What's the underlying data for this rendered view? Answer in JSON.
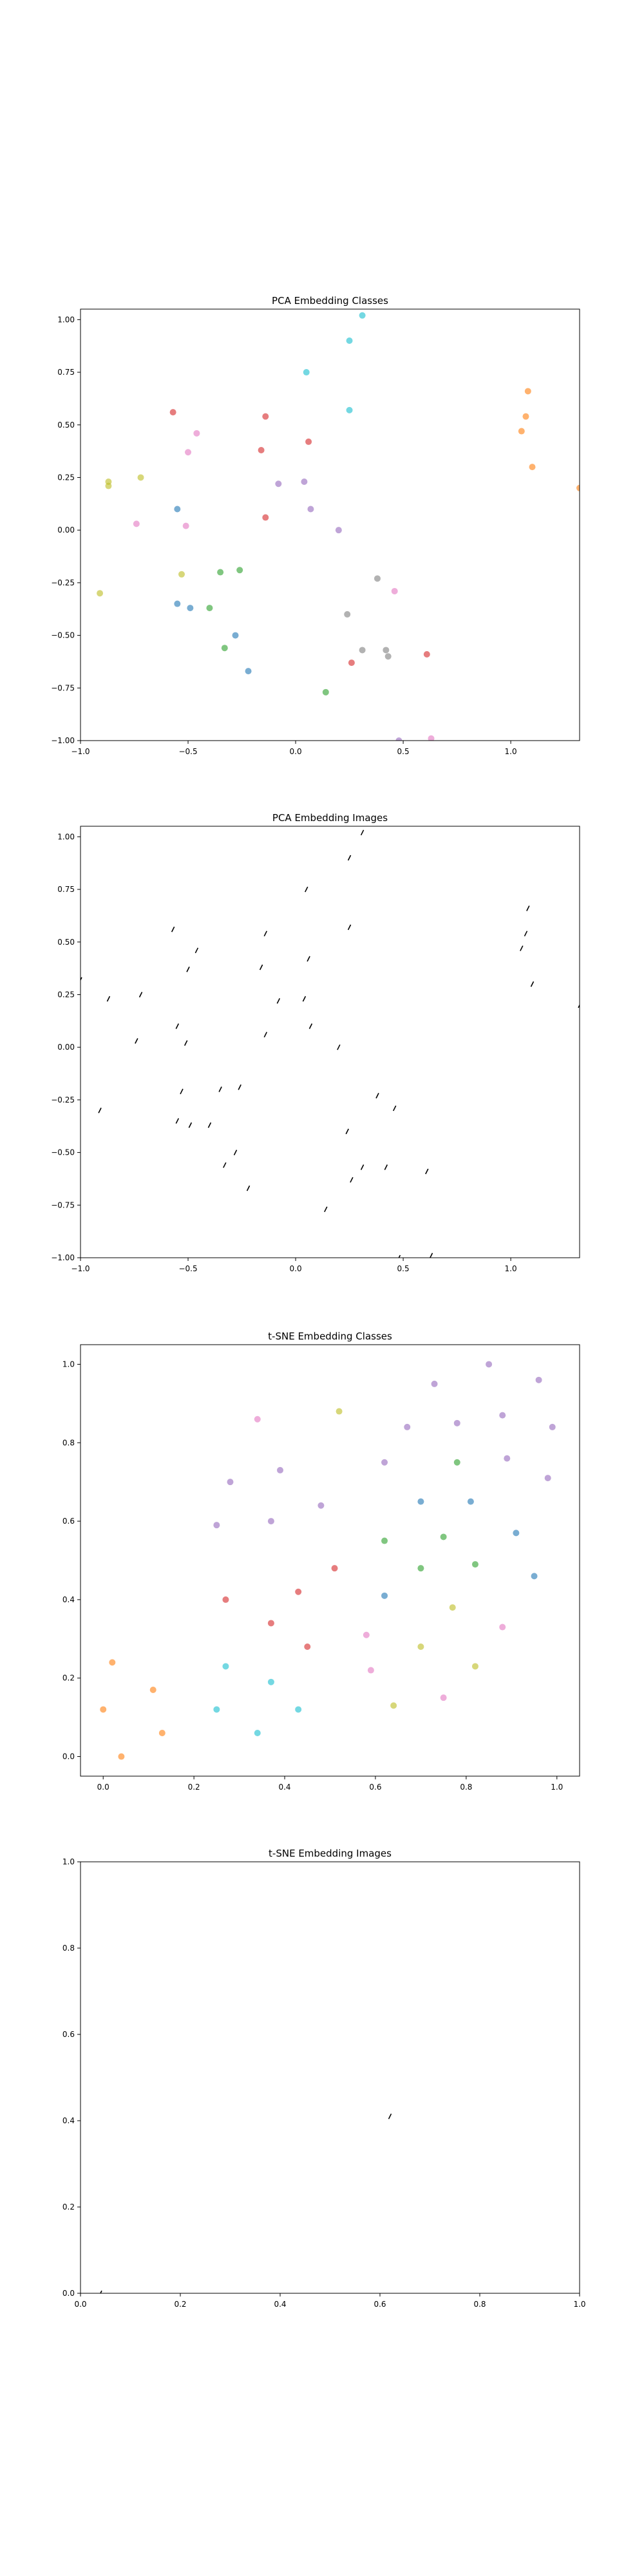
{
  "chart_data": [
    {
      "type": "scatter",
      "title": "PCA Embedding Classes",
      "xlim": [
        -1.0,
        1.32
      ],
      "ylim": [
        -1.0,
        1.05
      ],
      "xticks": [
        -1.0,
        -0.5,
        0.0,
        0.5,
        1.0
      ],
      "yticks": [
        -1.0,
        -0.75,
        -0.5,
        -0.25,
        0.0,
        0.25,
        0.5,
        0.75,
        1.0
      ],
      "xtick_labels": [
        "−1.0",
        "−0.5",
        "0.0",
        "0.5",
        "1.0"
      ],
      "ytick_labels": [
        "−1.00",
        "−0.75",
        "−0.50",
        "−0.25",
        "0.00",
        "0.25",
        "0.50",
        "0.75",
        "1.00"
      ],
      "points": [
        {
          "x": 0.31,
          "y": 1.02,
          "color": "#17becf"
        },
        {
          "x": 0.25,
          "y": 0.9,
          "color": "#17becf"
        },
        {
          "x": 0.05,
          "y": 0.75,
          "color": "#17becf"
        },
        {
          "x": 0.25,
          "y": 0.57,
          "color": "#17becf"
        },
        {
          "x": 1.08,
          "y": 0.66,
          "color": "#ff7f0e"
        },
        {
          "x": 1.07,
          "y": 0.54,
          "color": "#ff7f0e"
        },
        {
          "x": 1.05,
          "y": 0.47,
          "color": "#ff7f0e"
        },
        {
          "x": 1.1,
          "y": 0.3,
          "color": "#ff7f0e"
        },
        {
          "x": 1.32,
          "y": 0.2,
          "color": "#ff7f0e"
        },
        {
          "x": -0.57,
          "y": 0.56,
          "color": "#d62728"
        },
        {
          "x": -0.14,
          "y": 0.54,
          "color": "#d62728"
        },
        {
          "x": 0.06,
          "y": 0.42,
          "color": "#d62728"
        },
        {
          "x": -0.16,
          "y": 0.38,
          "color": "#d62728"
        },
        {
          "x": -0.14,
          "y": 0.06,
          "color": "#d62728"
        },
        {
          "x": -0.46,
          "y": 0.46,
          "color": "#e377c2"
        },
        {
          "x": -0.5,
          "y": 0.37,
          "color": "#e377c2"
        },
        {
          "x": -0.74,
          "y": 0.03,
          "color": "#e377c2"
        },
        {
          "x": -0.51,
          "y": 0.02,
          "color": "#e377c2"
        },
        {
          "x": -0.87,
          "y": 0.23,
          "color": "#bcbd22"
        },
        {
          "x": -0.87,
          "y": 0.21,
          "color": "#bcbd22"
        },
        {
          "x": -0.72,
          "y": 0.25,
          "color": "#bcbd22"
        },
        {
          "x": -0.91,
          "y": -0.3,
          "color": "#bcbd22"
        },
        {
          "x": -0.53,
          "y": -0.21,
          "color": "#bcbd22"
        },
        {
          "x": -0.08,
          "y": 0.22,
          "color": "#9467bd"
        },
        {
          "x": 0.04,
          "y": 0.23,
          "color": "#9467bd"
        },
        {
          "x": 0.07,
          "y": 0.1,
          "color": "#9467bd"
        },
        {
          "x": 0.2,
          "y": 0.0,
          "color": "#9467bd"
        },
        {
          "x": -0.55,
          "y": 0.1,
          "color": "#1f77b4"
        },
        {
          "x": -0.55,
          "y": -0.35,
          "color": "#1f77b4"
        },
        {
          "x": -0.49,
          "y": -0.37,
          "color": "#1f77b4"
        },
        {
          "x": -0.28,
          "y": -0.5,
          "color": "#1f77b4"
        },
        {
          "x": -0.22,
          "y": -0.67,
          "color": "#1f77b4"
        },
        {
          "x": -0.35,
          "y": -0.2,
          "color": "#2ca02c"
        },
        {
          "x": -0.26,
          "y": -0.19,
          "color": "#2ca02c"
        },
        {
          "x": -0.4,
          "y": -0.37,
          "color": "#2ca02c"
        },
        {
          "x": -0.33,
          "y": -0.56,
          "color": "#2ca02c"
        },
        {
          "x": 0.14,
          "y": -0.77,
          "color": "#2ca02c"
        },
        {
          "x": 0.38,
          "y": -0.23,
          "color": "#7f7f7f"
        },
        {
          "x": 0.42,
          "y": -0.57,
          "color": "#7f7f7f"
        },
        {
          "x": 0.43,
          "y": -0.6,
          "color": "#7f7f7f"
        },
        {
          "x": 0.31,
          "y": -0.57,
          "color": "#7f7f7f"
        },
        {
          "x": 0.24,
          "y": -0.4,
          "color": "#7f7f7f"
        },
        {
          "x": 0.46,
          "y": -0.29,
          "color": "#e377c2"
        },
        {
          "x": 0.26,
          "y": -0.63,
          "color": "#d62728"
        },
        {
          "x": 0.61,
          "y": -0.59,
          "color": "#d62728"
        },
        {
          "x": 0.48,
          "y": -1.0,
          "color": "#9467bd"
        },
        {
          "x": 0.63,
          "y": -0.99,
          "color": "#e377c2"
        }
      ]
    },
    {
      "type": "scatter",
      "title": "PCA Embedding Images",
      "xlim": [
        -1.0,
        1.32
      ],
      "ylim": [
        -1.0,
        1.05
      ],
      "xticks": [
        -1.0,
        -0.5,
        0.0,
        0.5,
        1.0
      ],
      "yticks": [
        -1.0,
        -0.75,
        -0.5,
        -0.25,
        0.0,
        0.25,
        0.5,
        0.75,
        1.0
      ],
      "xtick_labels": [
        "−1.0",
        "−0.5",
        "0.0",
        "0.5",
        "1.0"
      ],
      "ytick_labels": [
        "−1.00",
        "−0.75",
        "−0.50",
        "−0.25",
        "0.00",
        "0.25",
        "0.50",
        "0.75",
        "1.00"
      ],
      "marker": "tiny image glyphs at the PCA positions",
      "points": [
        {
          "x": 0.31,
          "y": 1.02
        },
        {
          "x": 0.25,
          "y": 0.9
        },
        {
          "x": 0.05,
          "y": 0.75
        },
        {
          "x": 0.25,
          "y": 0.57
        },
        {
          "x": 1.08,
          "y": 0.66
        },
        {
          "x": 1.07,
          "y": 0.54
        },
        {
          "x": 1.05,
          "y": 0.47
        },
        {
          "x": 1.1,
          "y": 0.3
        },
        {
          "x": 1.32,
          "y": 0.2
        },
        {
          "x": -0.57,
          "y": 0.56
        },
        {
          "x": -0.14,
          "y": 0.54
        },
        {
          "x": 0.06,
          "y": 0.42
        },
        {
          "x": -0.16,
          "y": 0.38
        },
        {
          "x": -0.14,
          "y": 0.06
        },
        {
          "x": -0.46,
          "y": 0.46
        },
        {
          "x": -0.5,
          "y": 0.37
        },
        {
          "x": -0.74,
          "y": 0.03
        },
        {
          "x": -0.51,
          "y": 0.02
        },
        {
          "x": -0.87,
          "y": 0.23
        },
        {
          "x": -0.72,
          "y": 0.25
        },
        {
          "x": -1.0,
          "y": 0.32
        },
        {
          "x": -0.91,
          "y": -0.3
        },
        {
          "x": -0.53,
          "y": -0.21
        },
        {
          "x": -0.08,
          "y": 0.22
        },
        {
          "x": 0.04,
          "y": 0.23
        },
        {
          "x": 0.07,
          "y": 0.1
        },
        {
          "x": 0.2,
          "y": 0.0
        },
        {
          "x": -0.55,
          "y": 0.1
        },
        {
          "x": -0.55,
          "y": -0.35
        },
        {
          "x": -0.49,
          "y": -0.37
        },
        {
          "x": -0.28,
          "y": -0.5
        },
        {
          "x": -0.22,
          "y": -0.67
        },
        {
          "x": -0.35,
          "y": -0.2
        },
        {
          "x": -0.26,
          "y": -0.19
        },
        {
          "x": -0.4,
          "y": -0.37
        },
        {
          "x": -0.33,
          "y": -0.56
        },
        {
          "x": 0.14,
          "y": -0.77
        },
        {
          "x": 0.38,
          "y": -0.23
        },
        {
          "x": 0.42,
          "y": -0.57
        },
        {
          "x": 0.31,
          "y": -0.57
        },
        {
          "x": 0.24,
          "y": -0.4
        },
        {
          "x": 0.46,
          "y": -0.29
        },
        {
          "x": 0.26,
          "y": -0.63
        },
        {
          "x": 0.61,
          "y": -0.59
        },
        {
          "x": 0.48,
          "y": -1.0
        },
        {
          "x": 0.63,
          "y": -0.99
        },
        {
          "x": 1.33,
          "y": 0.19
        }
      ]
    },
    {
      "type": "scatter",
      "title": "t-SNE Embedding Classes",
      "xlim": [
        -0.05,
        1.05
      ],
      "ylim": [
        -0.05,
        1.05
      ],
      "xticks": [
        0.0,
        0.2,
        0.4,
        0.6,
        0.8,
        1.0
      ],
      "yticks": [
        0.0,
        0.2,
        0.4,
        0.6,
        0.8,
        1.0
      ],
      "xtick_labels": [
        "0.0",
        "0.2",
        "0.4",
        "0.6",
        "0.8",
        "1.0"
      ],
      "ytick_labels": [
        "0.0",
        "0.2",
        "0.4",
        "0.6",
        "0.8",
        "1.0"
      ],
      "points": [
        {
          "x": 0.85,
          "y": 1.0,
          "color": "#9467bd"
        },
        {
          "x": 0.96,
          "y": 0.96,
          "color": "#9467bd"
        },
        {
          "x": 0.73,
          "y": 0.95,
          "color": "#9467bd"
        },
        {
          "x": 0.99,
          "y": 0.84,
          "color": "#9467bd"
        },
        {
          "x": 0.67,
          "y": 0.84,
          "color": "#9467bd"
        },
        {
          "x": 0.78,
          "y": 0.85,
          "color": "#9467bd"
        },
        {
          "x": 0.88,
          "y": 0.87,
          "color": "#9467bd"
        },
        {
          "x": 0.62,
          "y": 0.75,
          "color": "#9467bd"
        },
        {
          "x": 0.89,
          "y": 0.76,
          "color": "#9467bd"
        },
        {
          "x": 0.98,
          "y": 0.71,
          "color": "#9467bd"
        },
        {
          "x": 0.39,
          "y": 0.73,
          "color": "#9467bd"
        },
        {
          "x": 0.28,
          "y": 0.7,
          "color": "#9467bd"
        },
        {
          "x": 0.48,
          "y": 0.64,
          "color": "#9467bd"
        },
        {
          "x": 0.37,
          "y": 0.6,
          "color": "#9467bd"
        },
        {
          "x": 0.25,
          "y": 0.59,
          "color": "#9467bd"
        },
        {
          "x": 0.34,
          "y": 0.86,
          "color": "#e377c2"
        },
        {
          "x": 0.52,
          "y": 0.88,
          "color": "#bcbd22"
        },
        {
          "x": 0.78,
          "y": 0.75,
          "color": "#2ca02c"
        },
        {
          "x": 0.7,
          "y": 0.65,
          "color": "#1f77b4"
        },
        {
          "x": 0.81,
          "y": 0.65,
          "color": "#1f77b4"
        },
        {
          "x": 0.91,
          "y": 0.57,
          "color": "#1f77b4"
        },
        {
          "x": 0.95,
          "y": 0.46,
          "color": "#1f77b4"
        },
        {
          "x": 0.62,
          "y": 0.41,
          "color": "#1f77b4"
        },
        {
          "x": 0.62,
          "y": 0.55,
          "color": "#2ca02c"
        },
        {
          "x": 0.75,
          "y": 0.56,
          "color": "#2ca02c"
        },
        {
          "x": 0.7,
          "y": 0.48,
          "color": "#2ca02c"
        },
        {
          "x": 0.82,
          "y": 0.49,
          "color": "#2ca02c"
        },
        {
          "x": 0.51,
          "y": 0.48,
          "color": "#d62728"
        },
        {
          "x": 0.43,
          "y": 0.42,
          "color": "#d62728"
        },
        {
          "x": 0.27,
          "y": 0.4,
          "color": "#d62728"
        },
        {
          "x": 0.37,
          "y": 0.34,
          "color": "#d62728"
        },
        {
          "x": 0.45,
          "y": 0.28,
          "color": "#d62728"
        },
        {
          "x": 0.77,
          "y": 0.38,
          "color": "#bcbd22"
        },
        {
          "x": 0.7,
          "y": 0.28,
          "color": "#bcbd22"
        },
        {
          "x": 0.82,
          "y": 0.23,
          "color": "#bcbd22"
        },
        {
          "x": 0.64,
          "y": 0.13,
          "color": "#bcbd22"
        },
        {
          "x": 0.88,
          "y": 0.33,
          "color": "#e377c2"
        },
        {
          "x": 0.58,
          "y": 0.31,
          "color": "#e377c2"
        },
        {
          "x": 0.59,
          "y": 0.22,
          "color": "#e377c2"
        },
        {
          "x": 0.75,
          "y": 0.15,
          "color": "#e377c2"
        },
        {
          "x": 0.27,
          "y": 0.23,
          "color": "#17becf"
        },
        {
          "x": 0.37,
          "y": 0.19,
          "color": "#17becf"
        },
        {
          "x": 0.25,
          "y": 0.12,
          "color": "#17becf"
        },
        {
          "x": 0.43,
          "y": 0.12,
          "color": "#17becf"
        },
        {
          "x": 0.34,
          "y": 0.06,
          "color": "#17becf"
        },
        {
          "x": 0.02,
          "y": 0.24,
          "color": "#ff7f0e"
        },
        {
          "x": 0.11,
          "y": 0.17,
          "color": "#ff7f0e"
        },
        {
          "x": 0.0,
          "y": 0.12,
          "color": "#ff7f0e"
        },
        {
          "x": 0.13,
          "y": 0.06,
          "color": "#ff7f0e"
        },
        {
          "x": 0.04,
          "y": 0.0,
          "color": "#ff7f0e"
        }
      ]
    },
    {
      "type": "scatter",
      "title": "t-SNE Embedding Images",
      "xlim": [
        0.0,
        1.0
      ],
      "ylim": [
        0.0,
        1.0
      ],
      "xticks": [
        0.0,
        0.2,
        0.4,
        0.6,
        0.8,
        1.0
      ],
      "yticks": [
        0.0,
        0.2,
        0.4,
        0.6,
        0.8,
        1.0
      ],
      "xtick_labels": [
        "0.0",
        "0.2",
        "0.4",
        "0.6",
        "0.8",
        "1.0"
      ],
      "ytick_labels": [
        "0.0",
        "0.2",
        "0.4",
        "0.6",
        "0.8",
        "1.0"
      ],
      "marker": "tiny image glyphs",
      "points": [
        {
          "x": 0.62,
          "y": 0.41
        },
        {
          "x": 0.04,
          "y": 0.0
        }
      ]
    }
  ]
}
